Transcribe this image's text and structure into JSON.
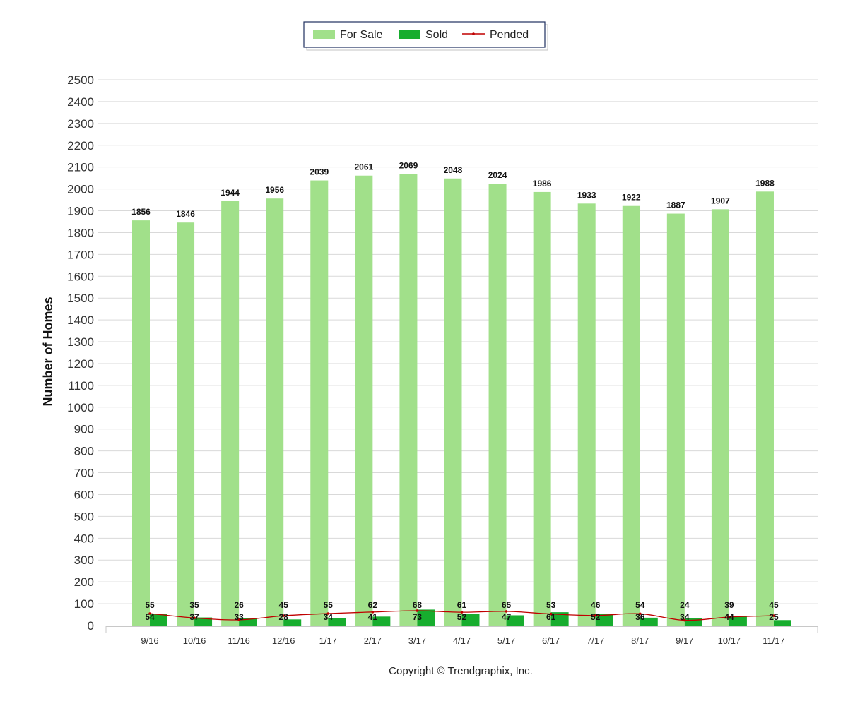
{
  "chart_data": {
    "type": "bar",
    "categories": [
      "9/16",
      "10/16",
      "11/16",
      "12/16",
      "1/17",
      "2/17",
      "3/17",
      "4/17",
      "5/17",
      "6/17",
      "7/17",
      "8/17",
      "9/17",
      "10/17",
      "11/17"
    ],
    "series": [
      {
        "name": "For Sale",
        "type": "bar",
        "color": "#a1e08a",
        "values": [
          1856,
          1846,
          1944,
          1956,
          2039,
          2061,
          2069,
          2048,
          2024,
          1986,
          1933,
          1922,
          1887,
          1907,
          1988
        ]
      },
      {
        "name": "Sold",
        "type": "bar",
        "color": "#17ad2e",
        "values": [
          54,
          37,
          33,
          28,
          34,
          41,
          73,
          52,
          47,
          61,
          52,
          36,
          34,
          44,
          25
        ]
      },
      {
        "name": "Pended",
        "type": "line",
        "color": "#c00000",
        "values": [
          55,
          35,
          26,
          45,
          55,
          62,
          68,
          61,
          65,
          53,
          46,
          54,
          24,
          39,
          45
        ]
      }
    ],
    "ylabel": "Number of Homes",
    "xlabel": "",
    "ylim": [
      0,
      2500
    ],
    "yticks": [
      0,
      100,
      200,
      300,
      400,
      500,
      600,
      700,
      800,
      900,
      1000,
      1100,
      1200,
      1300,
      1400,
      1500,
      1600,
      1700,
      1800,
      1900,
      2000,
      2100,
      2200,
      2300,
      2400,
      2500
    ],
    "grid": true,
    "legend_position": "top-center"
  },
  "copyright": "Copyright © Trendgraphix, Inc."
}
